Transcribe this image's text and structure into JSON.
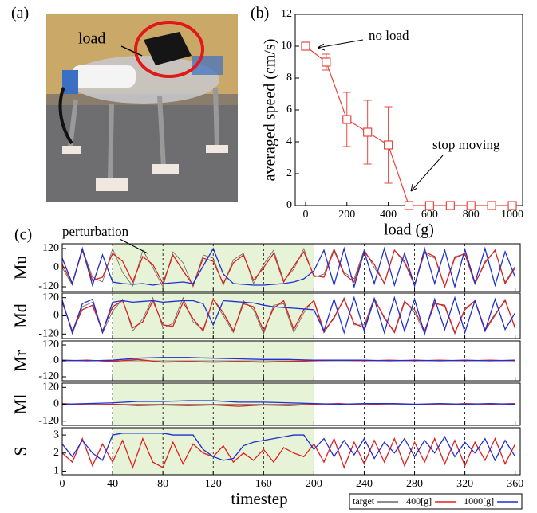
{
  "panel_labels": [
    "(a)",
    "(b)",
    "(c)"
  ],
  "photo": {
    "annotation": "load"
  },
  "chart_data": [
    {
      "type": "errorline",
      "xlabel": "load (g)",
      "ylabel": "averaged speed (cm/s)",
      "color": "#e8453c",
      "x": [
        0,
        100,
        200,
        300,
        400,
        500,
        600,
        700,
        800,
        900,
        1000
      ],
      "values": [
        10,
        9,
        5.4,
        4.6,
        3.8,
        0,
        0,
        0,
        0,
        0,
        0
      ],
      "errors": [
        0,
        0.5,
        1.7,
        2,
        2.4,
        0,
        0,
        0,
        0,
        0,
        0
      ],
      "xlim": [
        -50,
        1050
      ],
      "xticks": [
        0,
        200,
        400,
        600,
        800,
        1000
      ],
      "ylim": [
        0,
        12
      ],
      "yticks": [
        0,
        2,
        4,
        6,
        8,
        10,
        12
      ],
      "annotations": [
        "no load",
        "stop moving"
      ]
    },
    {
      "type": "line",
      "ylabel": "Mu",
      "annotation": "perturbation",
      "shade": [
        40,
        200
      ],
      "show_xtick_labels": false,
      "xlim": [
        0,
        364
      ],
      "xticks": [
        0,
        40,
        80,
        120,
        160,
        200,
        240,
        280,
        320,
        360
      ],
      "ylim": [
        -150,
        150
      ],
      "yticks": [
        -120,
        0,
        120
      ],
      "x": [
        0,
        8,
        16,
        24,
        32,
        40,
        48,
        56,
        64,
        72,
        80,
        88,
        96,
        104,
        112,
        120,
        128,
        136,
        144,
        152,
        160,
        168,
        176,
        184,
        192,
        200,
        208,
        216,
        224,
        232,
        240,
        248,
        256,
        264,
        272,
        280,
        288,
        296,
        304,
        312,
        320,
        328,
        336,
        344,
        352,
        360
      ],
      "series": [
        {
          "name": "target",
          "color": "#666666",
          "values": [
            0,
            -110,
            120,
            -60,
            -90,
            120,
            -30,
            -115,
            110,
            0,
            -120,
            100,
            30,
            -120,
            80,
            60,
            -110,
            50,
            90,
            -100,
            20,
            110,
            -80,
            -10,
            120,
            -60,
            -40,
            120,
            -30,
            -70,
            115,
            0,
            -95,
            110,
            30,
            -110,
            90,
            60,
            -120,
            70,
            85,
            -105,
            40,
            105,
            -90,
            10
          ]
        },
        {
          "name": "400[g]",
          "color": "#e02020",
          "values": [
            20,
            -100,
            110,
            -80,
            -60,
            90,
            40,
            -90,
            70,
            20,
            -100,
            80,
            -20,
            -110,
            60,
            40,
            -100,
            30,
            80,
            -80,
            0,
            90,
            -90,
            10,
            100,
            -50,
            -60,
            110,
            -40,
            -90,
            100,
            20,
            -100,
            110,
            40,
            -110,
            100,
            70,
            -120,
            60,
            90,
            -100,
            30,
            110,
            -100,
            0
          ]
        },
        {
          "name": "1000[g]",
          "color": "#1f2fd0",
          "values": [
            60,
            -100,
            120,
            -110,
            80,
            -90,
            -100,
            -105,
            -100,
            -110,
            -100,
            -95,
            -90,
            -100,
            10,
            120,
            -40,
            -100,
            -105,
            -110,
            -110,
            -105,
            -100,
            -90,
            -70,
            -20,
            110,
            -110,
            120,
            -120,
            100,
            -100,
            120,
            -110,
            90,
            -115,
            120,
            -100,
            110,
            -120,
            115,
            -95,
            120,
            -110,
            100,
            -60
          ]
        }
      ]
    },
    {
      "type": "line",
      "ylabel": "Md",
      "shade": [
        40,
        200
      ],
      "show_xtick_labels": false,
      "xlim": [
        0,
        364
      ],
      "xticks": [
        0,
        40,
        80,
        120,
        160,
        200,
        240,
        280,
        320,
        360
      ],
      "ylim": [
        -150,
        150
      ],
      "yticks": [
        -120,
        0,
        120
      ],
      "x": [
        0,
        8,
        16,
        24,
        32,
        40,
        48,
        56,
        64,
        72,
        80,
        88,
        96,
        104,
        112,
        120,
        128,
        136,
        144,
        152,
        160,
        168,
        176,
        184,
        192,
        200,
        208,
        216,
        224,
        232,
        240,
        248,
        256,
        264,
        272,
        280,
        288,
        296,
        304,
        312,
        320,
        328,
        336,
        344,
        352,
        360
      ],
      "series": [
        {
          "color": "#666666",
          "values": [
            110,
            -120,
            60,
            90,
            -115,
            30,
            110,
            -100,
            -20,
            120,
            -80,
            -50,
            120,
            -40,
            -90,
            110,
            0,
            -110,
            100,
            40,
            -120,
            70,
            80,
            -110,
            20,
            105,
            -95,
            -20,
            120,
            -60,
            -60,
            120,
            -20,
            -100,
            100,
            20,
            -115,
            90,
            60,
            -120,
            50,
            95,
            -100,
            0,
            110,
            -90
          ]
        },
        {
          "color": "#e02020",
          "values": [
            90,
            -100,
            40,
            70,
            -100,
            60,
            100,
            -80,
            -40,
            100,
            -60,
            -70,
            90,
            -20,
            -100,
            110,
            20,
            -100,
            80,
            60,
            -100,
            50,
            100,
            -90,
            40,
            100,
            -110,
            -10,
            110,
            -50,
            -80,
            110,
            -10,
            -110,
            90,
            40,
            -100,
            80,
            70,
            -110,
            40,
            100,
            -90,
            10,
            100,
            -80
          ]
        },
        {
          "color": "#1f2fd0",
          "values": [
            100,
            -110,
            80,
            110,
            -110,
            90,
            100,
            90,
            95,
            100,
            90,
            95,
            100,
            100,
            80,
            -60,
            100,
            95,
            90,
            85,
            70,
            60,
            55,
            50,
            45,
            40,
            -100,
            110,
            -110,
            120,
            -100,
            110,
            -110,
            120,
            -100,
            110,
            -120,
            110,
            -90,
            120,
            -110,
            100,
            -100,
            110,
            -90,
            20
          ]
        }
      ]
    },
    {
      "type": "line",
      "ylabel": "Mr",
      "shade": [
        40,
        200
      ],
      "show_xtick_labels": false,
      "xlim": [
        0,
        364
      ],
      "xticks": [
        0,
        40,
        80,
        120,
        160,
        200,
        240,
        280,
        320,
        360
      ],
      "ylim": [
        -150,
        150
      ],
      "yticks": [
        -120,
        0,
        120
      ],
      "x": [
        0,
        20,
        40,
        60,
        80,
        100,
        120,
        140,
        160,
        180,
        200,
        220,
        240,
        260,
        280,
        300,
        320,
        340,
        360
      ],
      "series": [
        {
          "color": "#666666",
          "values": [
            0,
            0,
            0,
            0,
            0,
            0,
            0,
            0,
            0,
            0,
            0,
            0,
            0,
            0,
            0,
            0,
            0,
            0,
            0
          ]
        },
        {
          "color": "#e02020",
          "values": [
            0,
            5,
            -5,
            10,
            -10,
            -5,
            -10,
            -5,
            -10,
            -5,
            0,
            5,
            0,
            5,
            0,
            5,
            0,
            5,
            0
          ]
        },
        {
          "color": "#1f2fd0",
          "values": [
            5,
            0,
            5,
            20,
            25,
            25,
            20,
            15,
            10,
            10,
            5,
            5,
            5,
            0,
            5,
            0,
            5,
            0,
            5
          ]
        }
      ]
    },
    {
      "type": "line",
      "ylabel": "Ml",
      "shade": [
        40,
        200
      ],
      "show_xtick_labels": false,
      "xlim": [
        0,
        364
      ],
      "xticks": [
        0,
        40,
        80,
        120,
        160,
        200,
        240,
        280,
        320,
        360
      ],
      "ylim": [
        -150,
        150
      ],
      "yticks": [
        -120,
        0,
        120
      ],
      "x": [
        0,
        20,
        40,
        60,
        80,
        100,
        120,
        140,
        160,
        180,
        200,
        220,
        240,
        260,
        280,
        300,
        320,
        340,
        360
      ],
      "series": [
        {
          "color": "#666666",
          "values": [
            0,
            0,
            0,
            0,
            0,
            0,
            0,
            0,
            0,
            0,
            0,
            0,
            0,
            0,
            0,
            0,
            0,
            0,
            0
          ]
        },
        {
          "color": "#e02020",
          "values": [
            5,
            -5,
            0,
            -10,
            -5,
            -10,
            -5,
            -15,
            -5,
            -10,
            0,
            5,
            -5,
            5,
            0,
            -5,
            5,
            0,
            5
          ]
        },
        {
          "color": "#1f2fd0",
          "values": [
            0,
            5,
            10,
            20,
            20,
            25,
            25,
            15,
            15,
            10,
            5,
            0,
            5,
            5,
            0,
            5,
            0,
            5,
            0
          ]
        }
      ]
    },
    {
      "type": "line",
      "ylabel": "S",
      "xlabel": "timestep",
      "shade": [
        40,
        200
      ],
      "show_xtick_labels": true,
      "xlim": [
        0,
        364
      ],
      "xticks": [
        0,
        40,
        80,
        120,
        160,
        200,
        240,
        280,
        320,
        360
      ],
      "ylim": [
        0.8,
        3.4
      ],
      "yticks": [
        1,
        2,
        3
      ],
      "x": [
        0,
        8,
        16,
        24,
        32,
        40,
        48,
        56,
        64,
        72,
        80,
        88,
        96,
        104,
        112,
        120,
        128,
        136,
        144,
        152,
        160,
        168,
        176,
        184,
        192,
        200,
        208,
        216,
        224,
        232,
        240,
        248,
        256,
        264,
        272,
        280,
        288,
        296,
        304,
        312,
        320,
        328,
        336,
        344,
        352,
        360
      ],
      "series": [
        {
          "color": "#e02020",
          "values": [
            2,
            1.5,
            2.8,
            1.3,
            2.5,
            1.5,
            2.7,
            1.2,
            2.8,
            1.5,
            1.2,
            2.6,
            1.4,
            2.5,
            2.0,
            1.8,
            2.4,
            1.5,
            2.0,
            1.6,
            2.2,
            1.5,
            2.3,
            2.0,
            1.8,
            2.5,
            1.5,
            2.8,
            1.2,
            2.6,
            1.4,
            2.7,
            1.5,
            2.8,
            1.3,
            2.6,
            1.5,
            2.8,
            1.4,
            2.7,
            1.3,
            2.6,
            1.6,
            2.8,
            1.4,
            2.5
          ]
        },
        {
          "color": "#1f2fd0",
          "values": [
            2.5,
            1.8,
            2.7,
            2.0,
            1.6,
            3.0,
            3.1,
            3.1,
            3.1,
            3.1,
            3.1,
            3.0,
            3.0,
            3.0,
            2.2,
            1.8,
            1.6,
            1.7,
            2.4,
            2.6,
            2.7,
            2.8,
            2.9,
            3.0,
            3.0,
            2.2,
            2.8,
            1.8,
            2.7,
            1.9,
            2.8,
            1.7,
            2.6,
            2.0,
            2.8,
            1.8,
            2.7,
            2.0,
            2.9,
            1.8,
            2.6,
            2.0,
            2.8,
            1.6,
            2.7,
            1.8
          ]
        }
      ]
    }
  ]
}
